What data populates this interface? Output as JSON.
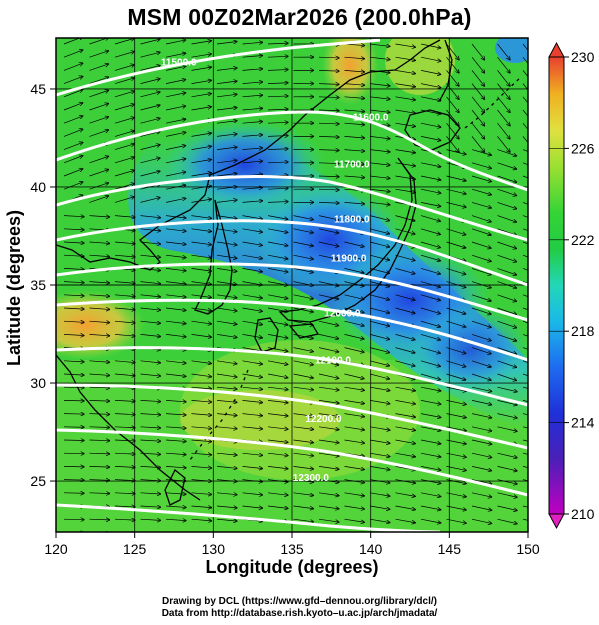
{
  "title": "MSM 00Z02Mar2026 (200.0hPa)",
  "xlabel": "Longitude (degrees)",
  "ylabel": "Latitude  (degrees)",
  "x_ticks": [
    "120",
    "125",
    "130",
    "135",
    "140",
    "145",
    "150"
  ],
  "y_ticks": [
    "25",
    "30",
    "35",
    "40",
    "45"
  ],
  "colorbar_ticks": [
    "230",
    "226",
    "222",
    "218",
    "214",
    "210"
  ],
  "credits": {
    "line1": "Drawing by DCL (https://www.gfd–dennou.org/library/dcl/)",
    "line2": "Data from http://database.rish.kyoto–u.ac.jp/arch/jmadata/"
  },
  "map_data": {
    "lon_range": [
      120,
      150
    ],
    "lat_range": [
      22.4,
      47.6
    ],
    "shaded_field_range": [
      210,
      230
    ],
    "contour_labels": [
      {
        "text": "11500.0",
        "lon": 127.8,
        "lat": 46.2
      },
      {
        "text": "11600.0",
        "lon": 140.0,
        "lat": 43.4
      },
      {
        "text": "11700.0",
        "lon": 138.8,
        "lat": 41.0
      },
      {
        "text": "11800.0",
        "lon": 138.8,
        "lat": 38.2
      },
      {
        "text": "11900.0",
        "lon": 138.6,
        "lat": 36.2
      },
      {
        "text": "12000.0",
        "lon": 138.2,
        "lat": 33.4
      },
      {
        "text": "12100.0",
        "lon": 137.6,
        "lat": 31.0
      },
      {
        "text": "12200.0",
        "lon": 137.0,
        "lat": 28.0
      },
      {
        "text": "12300.0",
        "lon": 136.2,
        "lat": 25.0
      }
    ]
  }
}
